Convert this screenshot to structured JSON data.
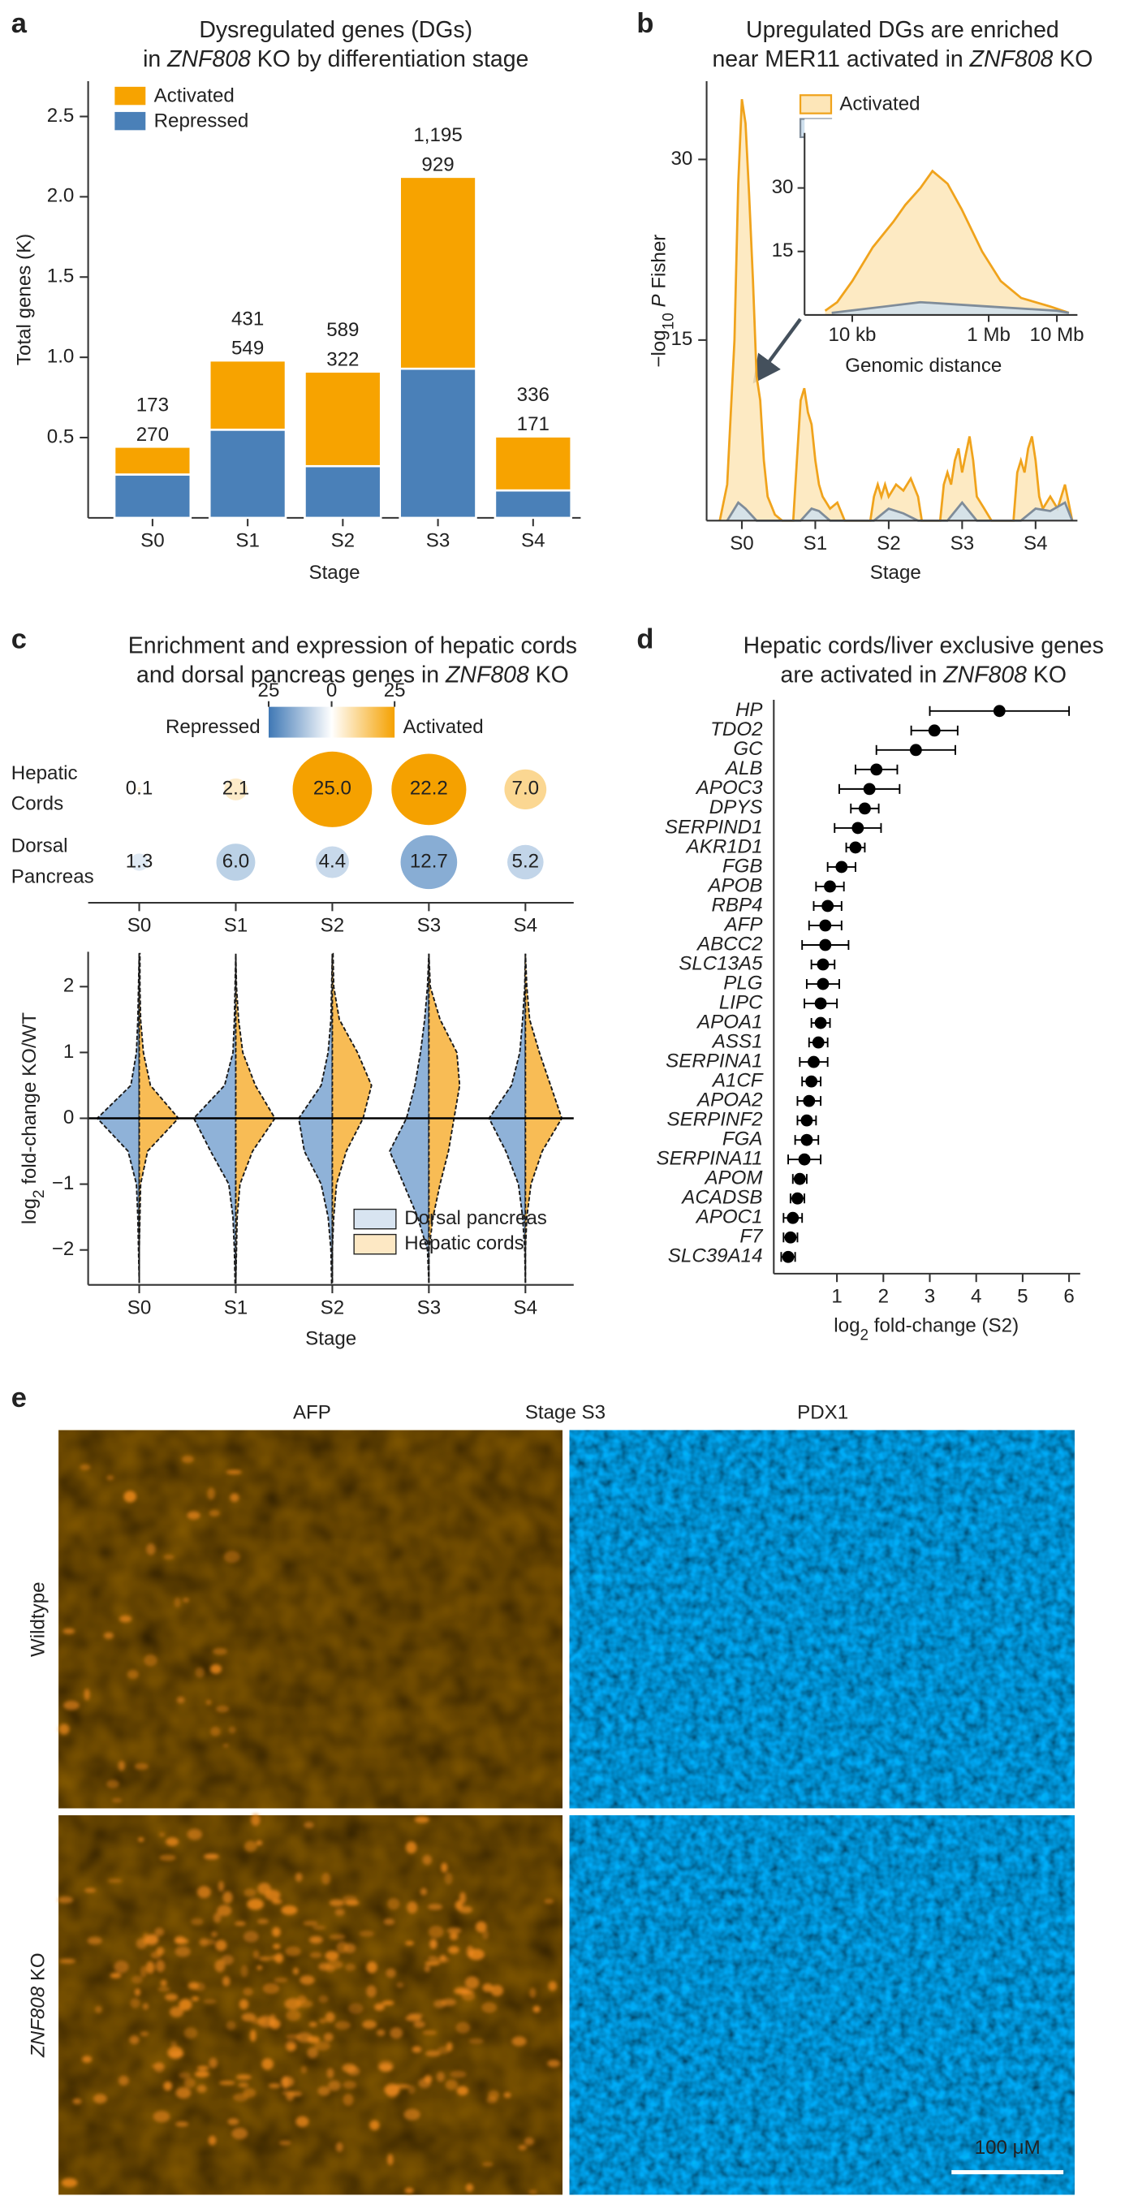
{
  "chart_data": [
    {
      "panel": "a",
      "type": "bar",
      "stacked": true,
      "title": [
        [
          "Dysregulated genes (DGs)"
        ],
        [
          "in ",
          {
            "text": "ZNF808",
            "italic": true
          },
          " KO by differentiation stage"
        ]
      ],
      "ylabel": "Total genes (K)",
      "xlabel": "Stage",
      "categories": [
        "S0",
        "S1",
        "S2",
        "S3",
        "S4"
      ],
      "series": [
        {
          "name": "Repressed",
          "color": "#4a80b8",
          "values": [
            0.27,
            0.549,
            0.322,
            0.929,
            0.171
          ],
          "value_labels": [
            "270",
            "549",
            "322",
            "929",
            "171"
          ]
        },
        {
          "name": "Activated",
          "color": "#f7a300",
          "values": [
            0.173,
            0.431,
            0.589,
            1.195,
            0.336
          ],
          "value_labels": [
            "173",
            "431",
            "589",
            "1,195",
            "336"
          ]
        }
      ],
      "ylim": [
        0,
        2.72
      ],
      "yticks": [
        0.5,
        {
          "value": 1,
          "label": "1.0"
        },
        1.5,
        {
          "value": 2,
          "label": "2.0"
        },
        2.5
      ],
      "legend": "upper left"
    },
    {
      "panel": "b",
      "type": "area",
      "title": [
        [
          "Upregulated DGs are enriched"
        ],
        [
          "near MER11 activated in ",
          {
            "text": "ZNF808",
            "italic": true
          },
          " KO"
        ]
      ],
      "ylabel": {
        "pre": "−log",
        "sub": "10",
        "italic": " P",
        "post": " Fisher"
      },
      "xlabel": "Stage",
      "xlim": [
        -0.48,
        4.57
      ],
      "xticks": [
        {
          "value": 0,
          "label": "S0"
        },
        {
          "value": 1,
          "label": "S1"
        },
        {
          "value": 2,
          "label": "S2"
        },
        {
          "value": 3,
          "label": "S3"
        },
        {
          "value": 4,
          "label": "S4"
        }
      ],
      "ylim": [
        0,
        36.5
      ],
      "yticks": [
        15,
        30
      ],
      "legend": "upper center",
      "series": [
        {
          "name": "Activated",
          "color": "#f0a31c",
          "fill": "#fde6b8",
          "x": [
            -0.3,
            -0.2,
            -0.1,
            -0.05,
            0,
            0.05,
            0.1,
            0.15,
            0.2,
            0.25,
            0.3,
            0.35,
            0.45,
            0.55,
            0.7,
            0.75,
            0.8,
            0.85,
            0.9,
            0.95,
            1.0,
            1.05,
            1.1,
            1.2,
            1.3,
            1.4,
            1.75,
            1.8,
            1.85,
            1.9,
            1.95,
            2.0,
            2.1,
            2.2,
            2.3,
            2.4,
            2.45,
            2.7,
            2.75,
            2.8,
            2.85,
            2.9,
            2.95,
            3.0,
            3.05,
            3.1,
            3.15,
            3.2,
            3.3,
            3.4,
            3.7,
            3.75,
            3.8,
            3.85,
            3.9,
            3.95,
            4.0,
            4.05,
            4.1,
            4.2,
            4.3,
            4.4,
            4.5
          ],
          "values": [
            0,
            3,
            15,
            28,
            35,
            33,
            27,
            20,
            12,
            10,
            5,
            2,
            0.5,
            0,
            0,
            5,
            10,
            11,
            9,
            8,
            5,
            3,
            2,
            1,
            1.5,
            0,
            0,
            2,
            3,
            2,
            3,
            2,
            3,
            2.5,
            3.5,
            2,
            0,
            0,
            3,
            4,
            3,
            5,
            6,
            4,
            5.5,
            7,
            5,
            2,
            1,
            0,
            0,
            4,
            5,
            4,
            6,
            7,
            5,
            2,
            1,
            2,
            1,
            3,
            0
          ]
        },
        {
          "name": "Repressed",
          "color": "#7f8c99",
          "fill": "#cfe0ee",
          "x": [
            -0.2,
            -0.05,
            0.05,
            0.2,
            0.8,
            0.95,
            1.05,
            1.2,
            1.8,
            2.0,
            2.2,
            2.4,
            2.8,
            3.0,
            3.2,
            3.8,
            4.0,
            4.2,
            4.4,
            4.5
          ],
          "values": [
            0,
            1.5,
            1,
            0,
            0,
            1,
            0.8,
            0,
            0,
            1,
            0.6,
            0,
            0,
            1.5,
            0,
            0,
            1,
            0.8,
            1.5,
            0
          ]
        }
      ],
      "inset": {
        "xlabel": "Genomic distance",
        "xscale": "log",
        "xlim": [
          2000,
          20000000
        ],
        "xticks": [
          {
            "value": 10000,
            "label": "10 kb"
          },
          {
            "value": 1000000,
            "label": "1 Mb"
          },
          {
            "value": 10000000,
            "label": "10 Mb"
          }
        ],
        "ylim": [
          0,
          43
        ],
        "yticks": [
          15,
          30
        ],
        "series": [
          {
            "color": "#f0a31c",
            "fill": "#fde6b8",
            "x": [
              4000,
              6000,
              10000,
              20000,
              40000,
              60000,
              100000,
              150000,
              250000,
              400000,
              800000,
              1500000,
              3000000,
              8000000,
              15000000
            ],
            "values": [
              1,
              3,
              8,
              16,
              22,
              26,
              30,
              34,
              31,
              25,
              15,
              8,
              4,
              2,
              0.5
            ]
          },
          {
            "color": "#7f8c99",
            "fill": "#cfe0ee",
            "x": [
              5000,
              30000,
              100000,
              1000000,
              10000000,
              15000000
            ],
            "values": [
              0.5,
              2,
              3,
              2,
              1,
              0.5
            ]
          }
        ]
      }
    },
    {
      "panel": "c",
      "type": "bubble",
      "title": [
        [
          "Enrichment and expression of hepatic cords"
        ],
        [
          "and dorsal pancreas genes in ",
          {
            "text": "ZNF808",
            "italic": true
          },
          " KO"
        ]
      ],
      "categories": [
        "S0",
        "S1",
        "S2",
        "S3",
        "S4"
      ],
      "series": [
        {
          "name": [
            "Hepatic",
            "Cords"
          ],
          "color": "#f5a100",
          "values": [
            0.1,
            2.1,
            25,
            22.2,
            7
          ],
          "value_labels": [
            "0.1",
            "2.1",
            "25.0",
            "22.2",
            "7.0"
          ]
        },
        {
          "name": [
            "Dorsal",
            "Pancreas"
          ],
          "color": "#4f86bf",
          "values": [
            1.3,
            6,
            4.4,
            12.7,
            5.2
          ],
          "value_labels": [
            "1.3",
            "6.0",
            "4.4",
            "12.7",
            "5.2"
          ]
        }
      ],
      "colorbar": {
        "lim": [
          -25,
          25
        ],
        "ticks": [
          {
            "value": -25,
            "label": "25"
          },
          0,
          25
        ],
        "low_label": "Repressed",
        "high_label": "Activated",
        "low_color": "#3f78b5",
        "high_color": "#f5a100"
      }
    },
    {
      "type": "violin",
      "ylabel": {
        "pre": "log",
        "sub": "2",
        "post": " fold-change KO/WT"
      },
      "xlabel": "Stage",
      "categories": [
        "S0",
        "S1",
        "S2",
        "S3",
        "S4"
      ],
      "levels": [
        -2.5,
        -2,
        -1.5,
        -1,
        -0.5,
        0,
        0.5,
        1,
        1.5,
        2,
        2.5
      ],
      "series": [
        {
          "name": "Dorsal pancreas",
          "color": "#8fb2d8",
          "widths": [
            [
              0,
              0.5,
              1,
              2,
              8,
              30,
              6,
              2,
              1,
              0.5,
              0
            ],
            [
              0.5,
              1,
              2,
              5,
              18,
              30,
              8,
              2,
              1,
              0.5,
              0
            ],
            [
              0.5,
              1,
              3,
              8,
              20,
              24,
              8,
              3,
              1,
              0.5,
              0
            ],
            [
              0,
              1,
              8,
              18,
              28,
              16,
              10,
              6,
              3,
              1,
              0
            ],
            [
              0,
              0.5,
              2,
              5,
              14,
              26,
              10,
              4,
              2,
              0.5,
              0
            ]
          ]
        },
        {
          "name": "Hepatic cords",
          "color": "#f8bc55",
          "widths": [
            [
              0,
              0,
              0.5,
              1,
              6,
              28,
              8,
              3,
              1,
              0.5,
              0.5
            ],
            [
              0,
              0.5,
              1,
              3,
              12,
              28,
              14,
              5,
              2,
              0.5,
              0
            ],
            [
              0,
              0,
              1,
              3,
              10,
              22,
              28,
              18,
              5,
              1,
              0.5
            ],
            [
              0,
              0,
              3,
              8,
              14,
              18,
              22,
              20,
              8,
              1,
              0
            ],
            [
              0,
              0,
              1,
              4,
              12,
              26,
              18,
              10,
              3,
              1,
              0
            ]
          ]
        }
      ],
      "ylim": [
        -2.53,
        2.53
      ],
      "yticks": [
        {
          "value": -2,
          "label": "−2"
        },
        {
          "value": -1,
          "label": "−1"
        },
        0,
        1,
        2
      ],
      "zero_line": true,
      "legend": "lower right"
    },
    {
      "panel": "d",
      "type": "errorbar",
      "title": [
        [
          "Hepatic cords/liver exclusive genes"
        ],
        [
          "are activated in ",
          {
            "text": "ZNF808",
            "italic": true
          },
          " KO"
        ]
      ],
      "xlabel": {
        "pre": "log",
        "sub": "2",
        "post": " fold-change (S2)"
      },
      "categories": [
        "HP",
        "TDO2",
        "GC",
        "ALB",
        "APOC3",
        "DPYS",
        "SERPIND1",
        "AKR1D1",
        "FGB",
        "APOB",
        "RBP4",
        "AFP",
        "ABCC2",
        "SLC13A5",
        "PLG",
        "LIPC",
        "APOA1",
        "ASS1",
        "SERPINA1",
        "A1CF",
        "APOA2",
        "SERPINF2",
        "FGA",
        "SERPINA11",
        "APOM",
        "ACADSB",
        "APOC1",
        "F7",
        "SLC39A14"
      ],
      "values": [
        4.5,
        3.1,
        2.7,
        1.85,
        1.7,
        1.6,
        1.45,
        1.4,
        1.1,
        0.85,
        0.8,
        0.75,
        0.75,
        0.7,
        0.7,
        0.65,
        0.65,
        0.6,
        0.5,
        0.45,
        0.4,
        0.35,
        0.35,
        0.3,
        0.2,
        0.15,
        0.05,
        0,
        -0.05
      ],
      "errors": [
        1.5,
        0.5,
        0.85,
        0.45,
        0.65,
        0.3,
        0.5,
        0.2,
        0.3,
        0.3,
        0.3,
        0.35,
        0.5,
        0.25,
        0.35,
        0.35,
        0.2,
        0.2,
        0.3,
        0.2,
        0.25,
        0.2,
        0.25,
        0.35,
        0.15,
        0.15,
        0.2,
        0.15,
        0.15
      ],
      "xlim": [
        -0.36,
        6.24
      ],
      "xticks": [
        1,
        2,
        3,
        4,
        5,
        6
      ],
      "color": "#000000"
    }
  ],
  "figure": {
    "panel": "e",
    "channels": [
      {
        "label": "AFP",
        "color": "#f08a1c"
      },
      {
        "label": "Stage S3"
      },
      {
        "label": "PDX1",
        "color": "#1a9ee0"
      }
    ],
    "rows": [
      [
        "Wildtype"
      ],
      [
        {
          "text": "ZNF808",
          "italic": true
        },
        " KO"
      ]
    ],
    "scale_bar": "100 μM"
  }
}
